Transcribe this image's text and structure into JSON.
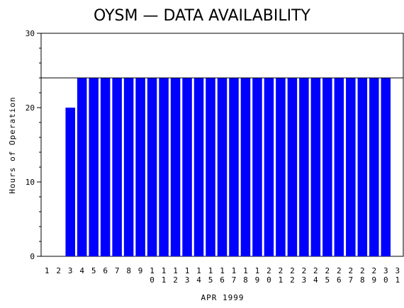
{
  "chart_data": {
    "type": "bar",
    "title": "OYSM  —  DATA AVAILABILITY",
    "xlabel": "APR 1999",
    "ylabel": "Hours of Operation",
    "categories": [
      "1",
      "2",
      "3",
      "4",
      "5",
      "6",
      "7",
      "8",
      "9",
      "10",
      "11",
      "12",
      "13",
      "14",
      "15",
      "16",
      "17",
      "18",
      "19",
      "20",
      "21",
      "22",
      "23",
      "24",
      "25",
      "26",
      "27",
      "28",
      "29",
      "30",
      "31"
    ],
    "values": [
      null,
      null,
      20,
      24,
      24,
      24,
      24,
      24,
      24,
      24,
      24,
      24,
      24,
      24,
      24,
      24,
      24,
      24,
      24,
      24,
      24,
      24,
      24,
      24,
      24,
      24,
      24,
      24,
      24,
      24,
      null
    ],
    "ylim": [
      0,
      30
    ],
    "yticks": [
      0,
      10,
      20,
      30
    ],
    "reference_line": 24,
    "grid": false,
    "bar_color": "#0000ff"
  }
}
